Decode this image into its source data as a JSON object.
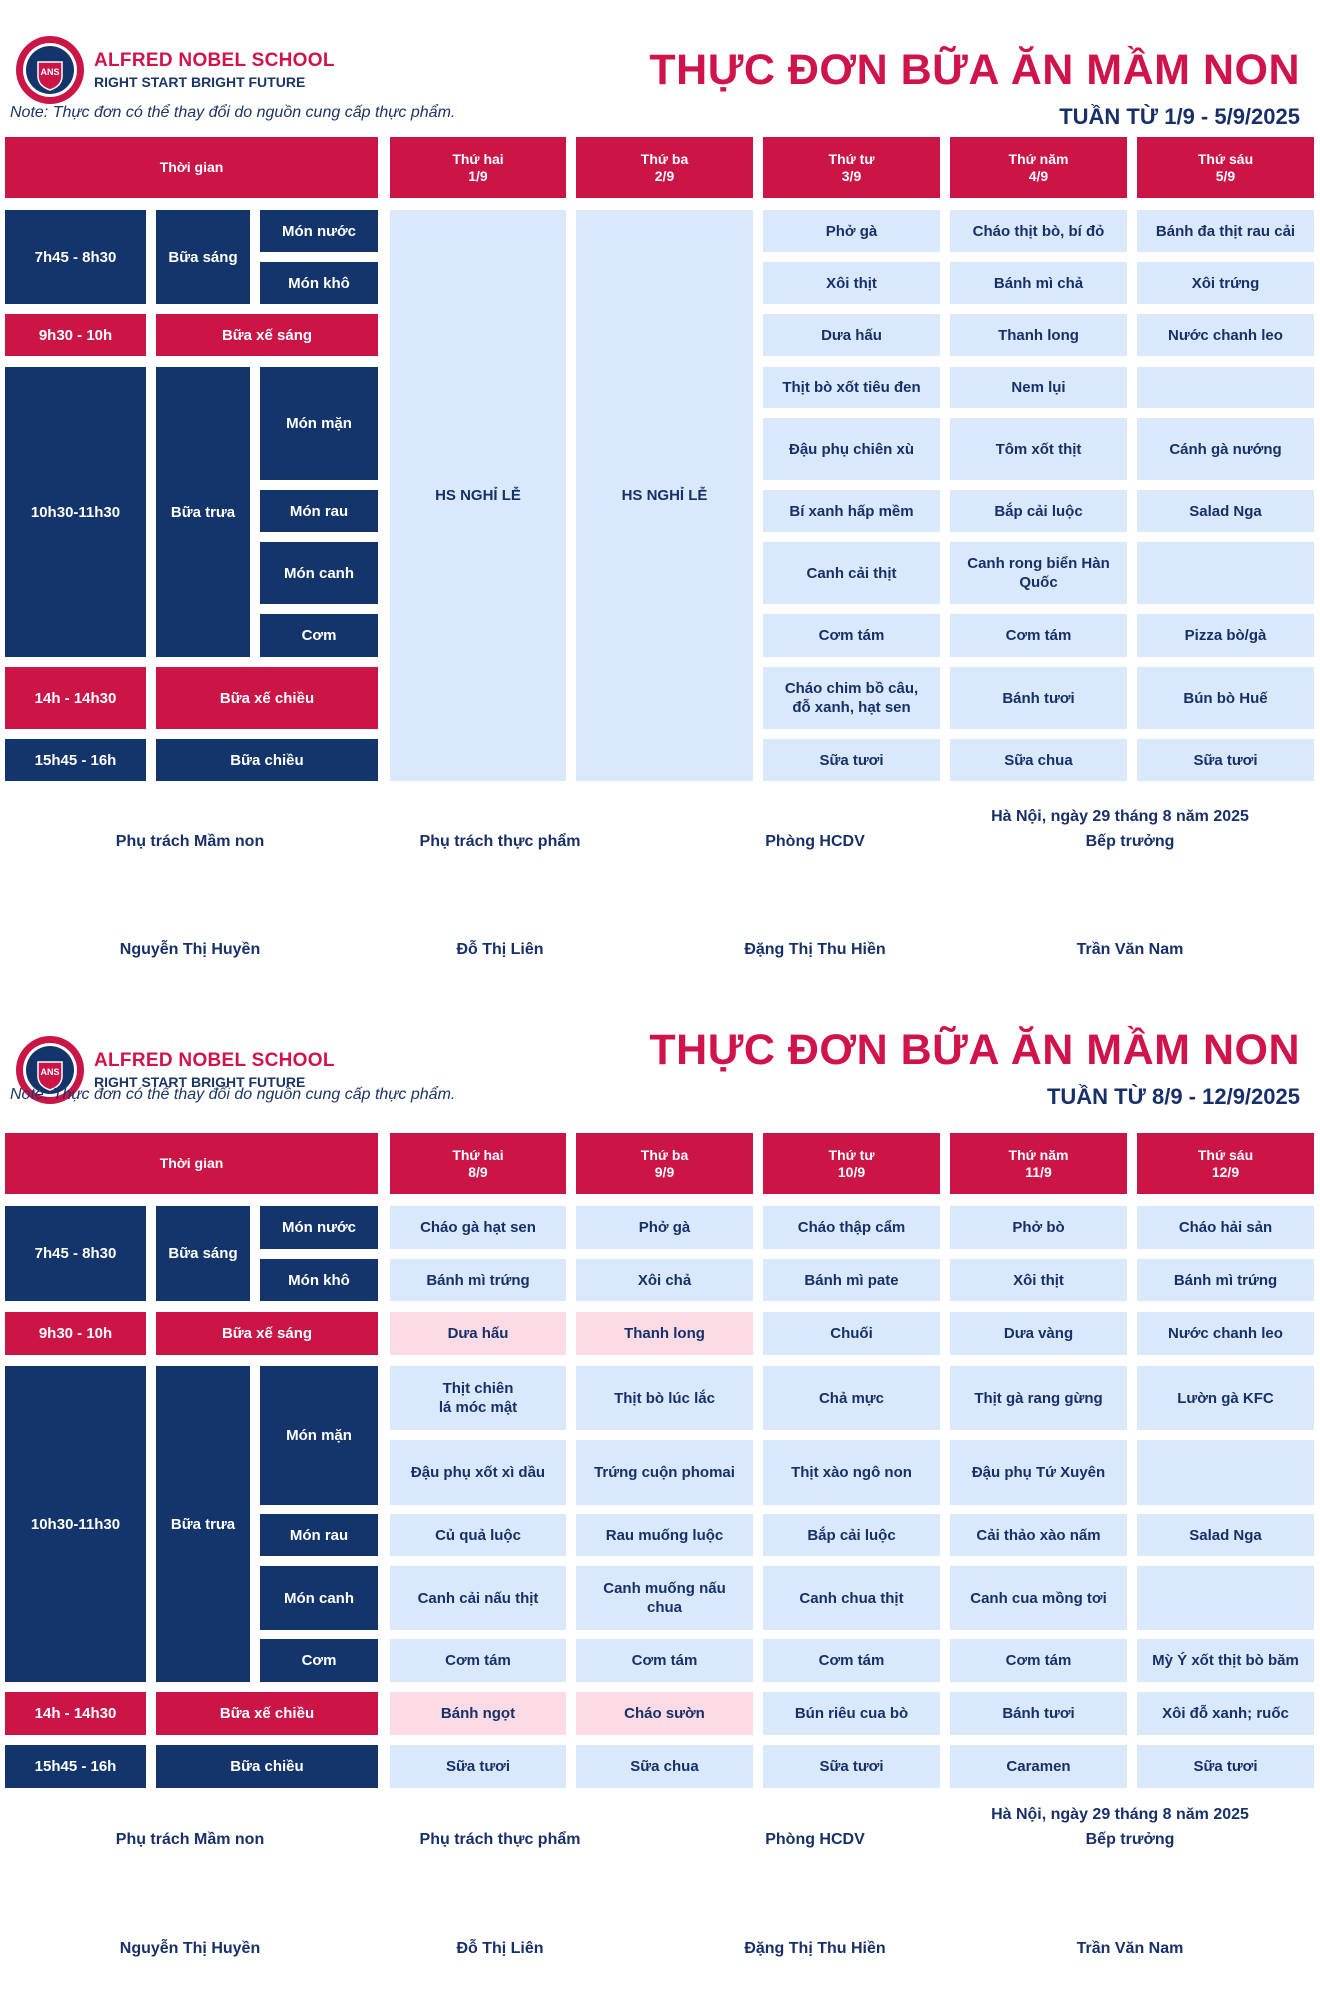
{
  "school": {
    "name": "ALFRED NOBEL SCHOOL",
    "slogan": "RIGHT START  BRIGHT FUTURE",
    "logo_text": "ANS"
  },
  "note": "Note: Thực đơn có thể thay đổi do nguồn cung cấp thực phẩm.",
  "colors": {
    "red": "#cc1547",
    "navy": "#14356b",
    "light_blue": "#d9e8fb",
    "pink": "#fcdbe5"
  },
  "labels": {
    "time_header": "Thời gian",
    "slot_breakfast": "7h45 - 8h30",
    "meal_breakfast": "Bữa sáng",
    "dish_soup_morning": "Món nước",
    "dish_dry": "Món khô",
    "slot_morning_snack": "9h30 - 10h",
    "meal_morning_snack": "Bữa xế sáng",
    "slot_lunch": "10h30-11h30",
    "meal_lunch": "Bữa trưa",
    "dish_savory": "Món mặn",
    "dish_veg": "Món rau",
    "dish_soup": "Món canh",
    "dish_rice": "Cơm",
    "slot_afternoon_snack": "14h - 14h30",
    "meal_afternoon_snack": "Bữa xế chiều",
    "slot_afternoon": "15h45 - 16h",
    "meal_afternoon": "Bữa chiều"
  },
  "pages": [
    {
      "title": "THỰC ĐƠN BỮA ĂN MẦM NON",
      "week": "TUẦN TỪ 1/9 - 5/9/2025",
      "days": [
        {
          "label": "Thứ hai\n1/9"
        },
        {
          "label": "Thứ ba\n2/9"
        },
        {
          "label": "Thứ tư\n3/9"
        },
        {
          "label": "Thứ năm\n4/9"
        },
        {
          "label": "Thứ sáu\n5/9"
        }
      ],
      "holiday_text": "HS NGHỈ LỄ",
      "menu": {
        "d3": [
          "Phở gà",
          "Xôi thịt",
          "Dưa hấu",
          "Thịt bò xốt tiêu đen",
          "Đậu phụ chiên xù",
          "Bí xanh hấp mềm",
          "Canh cải thịt",
          "Cơm tám",
          "Cháo chim bồ câu,\nđỗ xanh, hạt sen",
          "Sữa tươi"
        ],
        "d4": [
          "Cháo thịt bò, bí đỏ",
          "Bánh mì chả",
          "Thanh long",
          "Nem lụi",
          "Tôm xốt thịt",
          "Bắp cải luộc",
          "Canh rong biển Hàn\nQuốc",
          "Cơm tám",
          "Bánh tươi",
          "Sữa chua"
        ],
        "d5": [
          "Bánh đa thịt rau cải",
          "Xôi trứng",
          "Nước chanh leo",
          "",
          "Cánh gà nướng",
          "Salad Nga",
          "",
          "Pizza bò/gà",
          "Bún bò Huế",
          "Sữa tươi"
        ]
      },
      "footer": {
        "date": "Hà Nội, ngày 29 tháng 8 năm 2025",
        "roles": [
          "Phụ trách Mầm non",
          "Phụ trách thực phẩm",
          "Phòng HCDV",
          "Bếp trưởng"
        ],
        "names": [
          "Nguyễn Thị Huyền",
          "Đỗ Thị Liên",
          "Đặng Thị Thu Hiền",
          "Trần Văn Nam"
        ]
      }
    },
    {
      "title": "THỰC ĐƠN BỮA ĂN MẦM NON",
      "week": "TUẦN TỪ 8/9 - 12/9/2025",
      "days": [
        {
          "label": "Thứ hai\n8/9"
        },
        {
          "label": "Thứ ba\n9/9"
        },
        {
          "label": "Thứ tư\n10/9"
        },
        {
          "label": "Thứ năm\n11/9"
        },
        {
          "label": "Thứ sáu\n12/9"
        }
      ],
      "menu": {
        "d1": [
          "Cháo gà hạt sen",
          "Bánh mì trứng",
          "Dưa hấu",
          "Thịt chiên\nlá móc mật",
          "Đậu phụ xốt xì dầu",
          "Củ quả luộc",
          "Canh cải nấu thịt",
          "Cơm tám",
          "Bánh ngọt",
          "Sữa tươi"
        ],
        "d2": [
          "Phở gà",
          "Xôi chả",
          "Thanh long",
          "Thịt bò lúc lắc",
          "Trứng cuộn phomai",
          "Rau muống luộc",
          "Canh muống nấu\nchua",
          "Cơm tám",
          "Cháo sườn",
          "Sữa chua"
        ],
        "d3": [
          "Cháo thập cẩm",
          "Bánh mì pate",
          "Chuối",
          "Chả mực",
          "Thịt xào ngô non",
          "Bắp cải luộc",
          "Canh chua thịt",
          "Cơm tám",
          "Bún riêu cua bò",
          "Sữa tươi"
        ],
        "d4": [
          "Phở bò",
          "Xôi thịt",
          "Dưa vàng",
          "Thịt gà rang gừng",
          "Đậu phụ Tứ Xuyên",
          "Cải thảo xào nấm",
          "Canh cua mồng tơi",
          "Cơm tám",
          "Bánh tươi",
          "Caramen"
        ],
        "d5": [
          "Cháo hải sản",
          "Bánh mì trứng",
          "Nước chanh leo",
          "Lườn gà KFC",
          "",
          "Salad Nga",
          "",
          "Mỳ Ý xốt thịt bò băm",
          "Xôi đỗ xanh; ruốc",
          "Sữa tươi"
        ]
      },
      "footer": {
        "date": "Hà Nội, ngày 29 tháng 8 năm 2025",
        "roles": [
          "Phụ trách Mầm non",
          "Phụ trách thực phẩm",
          "Phòng HCDV",
          "Bếp trưởng"
        ],
        "names": [
          "Nguyễn Thị Huyền",
          "Đỗ Thị Liên",
          "Đặng Thị Thu Hiền",
          "Trần Văn Nam"
        ]
      }
    }
  ]
}
